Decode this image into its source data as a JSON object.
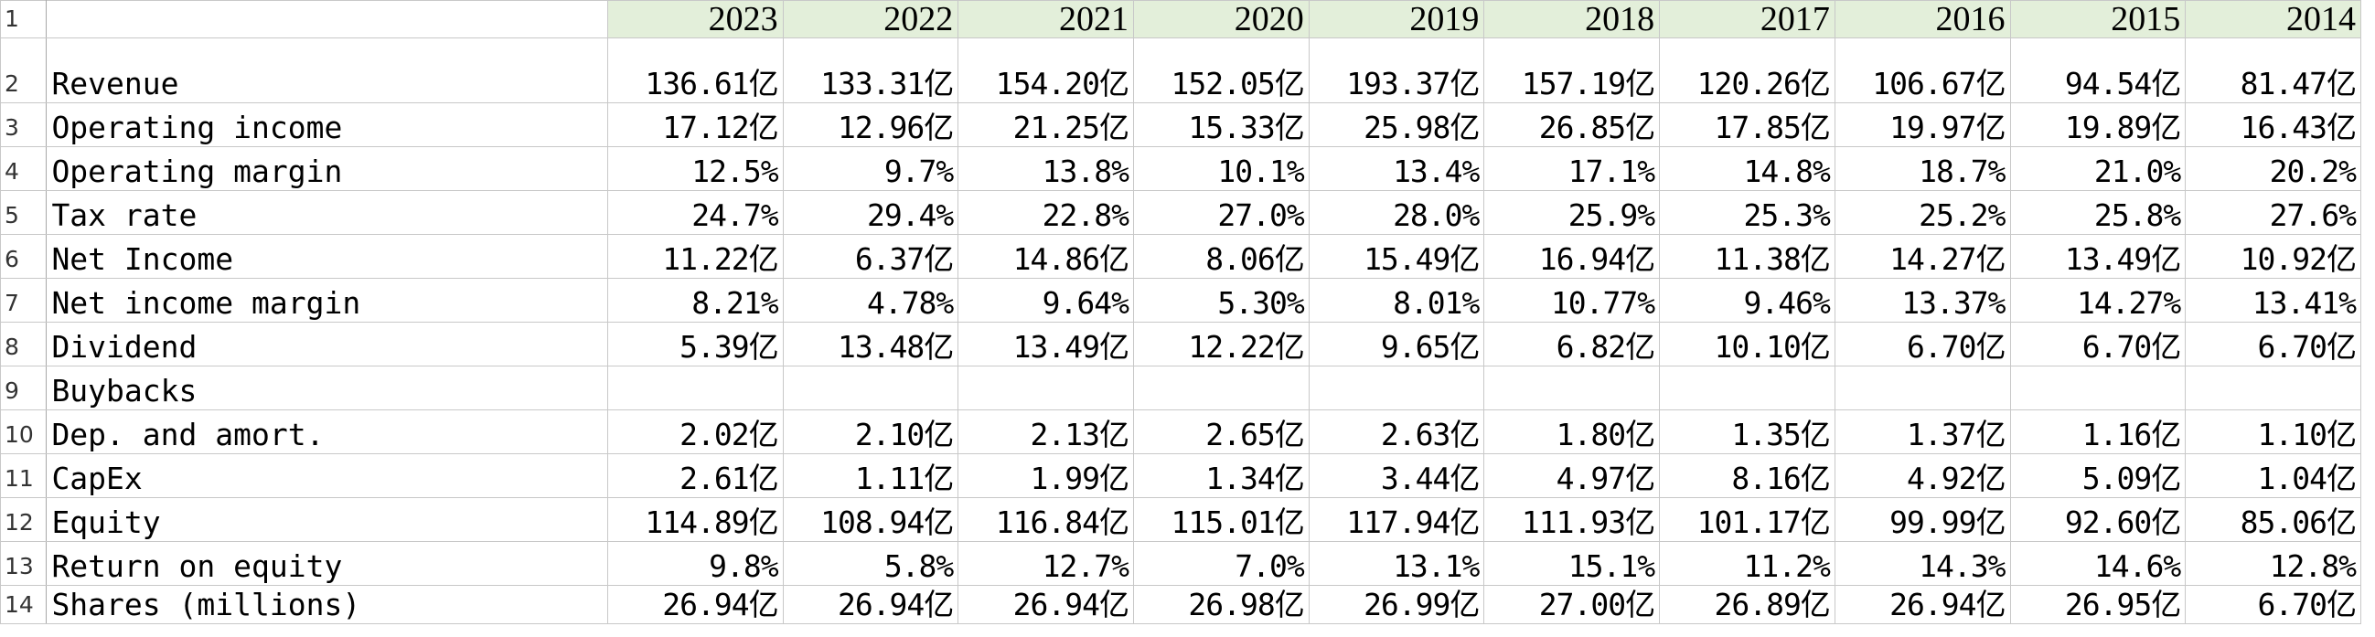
{
  "sheet": {
    "years": [
      "2023",
      "2022",
      "2021",
      "2020",
      "2019",
      "2018",
      "2017",
      "2016",
      "2015",
      "2014"
    ],
    "rows": [
      {
        "num": "2",
        "label": "Revenue",
        "values": [
          "136.61亿",
          "133.31亿",
          "154.20亿",
          "152.05亿",
          "193.37亿",
          "157.19亿",
          "120.26亿",
          "106.67亿",
          "94.54亿",
          "81.47亿"
        ]
      },
      {
        "num": "3",
        "label": "Operating income",
        "values": [
          "17.12亿",
          "12.96亿",
          "21.25亿",
          "15.33亿",
          "25.98亿",
          "26.85亿",
          "17.85亿",
          "19.97亿",
          "19.89亿",
          "16.43亿"
        ]
      },
      {
        "num": "4",
        "label": "Operating margin",
        "values": [
          "12.5%",
          "9.7%",
          "13.8%",
          "10.1%",
          "13.4%",
          "17.1%",
          "14.8%",
          "18.7%",
          "21.0%",
          "20.2%"
        ]
      },
      {
        "num": "5",
        "label": "Tax rate",
        "values": [
          "24.7%",
          "29.4%",
          "22.8%",
          "27.0%",
          "28.0%",
          "25.9%",
          "25.3%",
          "25.2%",
          "25.8%",
          "27.6%"
        ]
      },
      {
        "num": "6",
        "label": "Net Income",
        "values": [
          "11.22亿",
          "6.37亿",
          "14.86亿",
          "8.06亿",
          "15.49亿",
          "16.94亿",
          "11.38亿",
          "14.27亿",
          "13.49亿",
          "10.92亿"
        ]
      },
      {
        "num": "7",
        "label": "Net income margin",
        "values": [
          "8.21%",
          "4.78%",
          "9.64%",
          "5.30%",
          "8.01%",
          "10.77%",
          "9.46%",
          "13.37%",
          "14.27%",
          "13.41%"
        ]
      },
      {
        "num": "8",
        "label": "Dividend",
        "values": [
          "5.39亿",
          "13.48亿",
          "13.49亿",
          "12.22亿",
          "9.65亿",
          "6.82亿",
          "10.10亿",
          "6.70亿",
          "6.70亿",
          "6.70亿"
        ]
      },
      {
        "num": "9",
        "label": "Buybacks",
        "values": [
          "",
          "",
          "",
          "",
          "",
          "",
          "",
          "",
          "",
          ""
        ]
      },
      {
        "num": "10",
        "label": "Dep. and amort.",
        "values": [
          "2.02亿",
          "2.10亿",
          "2.13亿",
          "2.65亿",
          "2.63亿",
          "1.80亿",
          "1.35亿",
          "1.37亿",
          "1.16亿",
          "1.10亿"
        ]
      },
      {
        "num": "11",
        "label": "CapEx",
        "values": [
          "2.61亿",
          "1.11亿",
          "1.99亿",
          "1.34亿",
          "3.44亿",
          "4.97亿",
          "8.16亿",
          "4.92亿",
          "5.09亿",
          "1.04亿"
        ]
      },
      {
        "num": "12",
        "label": "Equity",
        "values": [
          "114.89亿",
          "108.94亿",
          "116.84亿",
          "115.01亿",
          "117.94亿",
          "111.93亿",
          "101.17亿",
          "99.99亿",
          "92.60亿",
          "85.06亿"
        ]
      },
      {
        "num": "13",
        "label": "Return on equity",
        "values": [
          "9.8%",
          "5.8%",
          "12.7%",
          "7.0%",
          "13.1%",
          "15.1%",
          "11.2%",
          "14.3%",
          "14.6%",
          "12.8%"
        ]
      },
      {
        "num": "14",
        "label": "Shares (millions)",
        "values": [
          "26.94亿",
          "26.94亿",
          "26.94亿",
          "26.98亿",
          "26.99亿",
          "27.00亿",
          "26.89亿",
          "26.94亿",
          "26.95亿",
          "6.70亿"
        ]
      }
    ]
  },
  "colors": {
    "header_fill": "#e3efda",
    "gridline": "#c8c8c8"
  }
}
